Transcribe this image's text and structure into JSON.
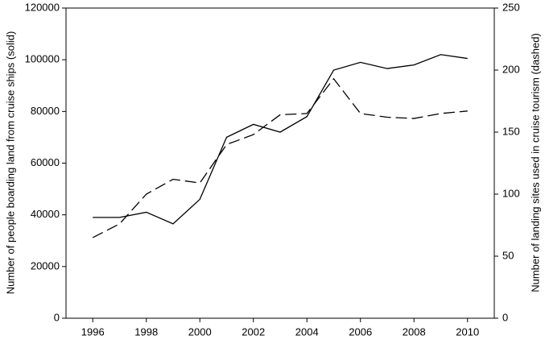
{
  "chart_data": {
    "type": "line",
    "ylabel": "Number of people boarding land from cruise ships (solid)",
    "y2label": "Number of landing sites used in cruise tourism (dashed)",
    "x": [
      1996,
      1997,
      1998,
      1999,
      2000,
      2001,
      2002,
      2003,
      2004,
      2005,
      2006,
      2007,
      2008,
      2009,
      2010
    ],
    "series": [
      {
        "color": "#000000",
        "dashed": false,
        "values": [
          39000,
          39000,
          41000,
          36500,
          46000,
          70000,
          75000,
          72000,
          78000,
          96000,
          99000,
          96600,
          98000,
          102000,
          100500
        ]
      },
      {
        "color": "#000000",
        "dashed": true,
        "axis": "y2",
        "values": [
          65,
          76,
          100,
          112,
          109,
          140,
          148,
          164,
          165,
          193,
          165,
          162,
          161,
          165,
          167
        ]
      }
    ],
    "xlim": [
      1995,
      2011
    ],
    "xticks": [
      1996,
      1998,
      2000,
      2002,
      2004,
      2006,
      2008,
      2010
    ],
    "ylim": [
      0,
      120000
    ],
    "yticks": [
      0,
      20000,
      40000,
      60000,
      80000,
      100000,
      120000
    ],
    "y2lim": [
      0,
      250
    ],
    "y2ticks": [
      0,
      50,
      100,
      150,
      200,
      250
    ]
  }
}
